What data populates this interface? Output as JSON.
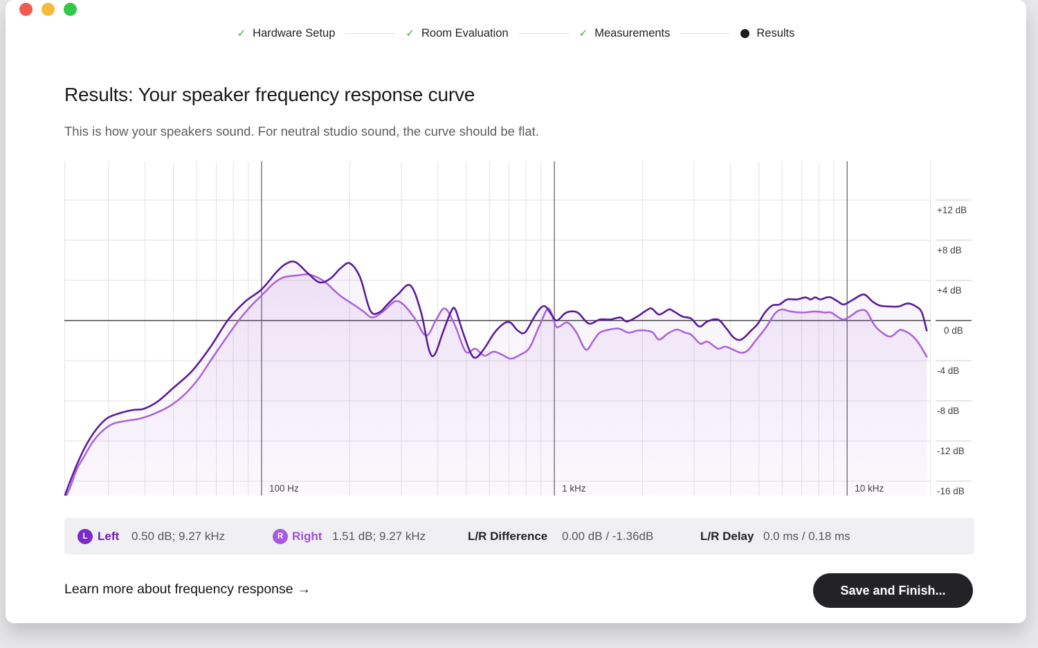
{
  "window": {
    "background": "#e9e8ea",
    "surface": "#ffffff",
    "controls": [
      {
        "name": "close",
        "color": "#f35a51"
      },
      {
        "name": "minimize",
        "color": "#f5bc3c"
      },
      {
        "name": "zoom",
        "color": "#33c748"
      }
    ]
  },
  "stepper": {
    "check_color": "#38a938",
    "current_dot_color": "#1c1c1e",
    "steps": [
      {
        "label": "Hardware Setup",
        "status": "completed"
      },
      {
        "label": "Room Evaluation",
        "status": "completed"
      },
      {
        "label": "Measurements",
        "status": "completed"
      },
      {
        "label": "Results",
        "status": "current"
      }
    ]
  },
  "page": {
    "title": "Results: Your speaker frequency response curve",
    "subtitle": "This is how your speakers sound. For neutral studio sound, the curve should be flat."
  },
  "chart_data": {
    "type": "line",
    "title": "Speaker frequency response",
    "x_scale": "log",
    "x_unit": "Hz",
    "y_unit": "dB",
    "x_range_hz": [
      21.2,
      19300
    ],
    "y_range_db": [
      16,
      -17.45
    ],
    "grid": true,
    "legend_position": "none",
    "x_major_ticks": [
      {
        "hz": 100,
        "label": "100 Hz"
      },
      {
        "hz": 1000,
        "label": "1 kHz"
      },
      {
        "hz": 10000,
        "label": "10 kHz"
      }
    ],
    "x_minor_ticks_hz": [
      30,
      40,
      50,
      60,
      70,
      80,
      90,
      200,
      300,
      400,
      500,
      600,
      700,
      800,
      900,
      2000,
      3000,
      4000,
      5000,
      6000,
      7000,
      8000,
      9000
    ],
    "y_ticks": [
      {
        "db": 12,
        "label": "+12 dB"
      },
      {
        "db": 8,
        "label": "+8 dB"
      },
      {
        "db": 4,
        "label": "+4 dB"
      },
      {
        "db": 0,
        "label": "0 dB"
      },
      {
        "db": -4,
        "label": "-4 dB"
      },
      {
        "db": -8,
        "label": "-8 dB"
      },
      {
        "db": -12,
        "label": "-12 dB"
      },
      {
        "db": -16,
        "label": "-16 dB"
      }
    ],
    "series": [
      {
        "name": "Left",
        "color": "#5a1b9b",
        "fill_top": "rgba(90,27,155,0.05)",
        "fill_bottom": "rgba(90,27,155,0.01)",
        "points": [
          [
            21.3,
            -17.4
          ],
          [
            22,
            -16.3
          ],
          [
            23.6,
            -14.1
          ],
          [
            25.4,
            -12.2
          ],
          [
            27.5,
            -10.7
          ],
          [
            29.8,
            -9.7
          ],
          [
            33,
            -9.2
          ],
          [
            36.6,
            -8.9
          ],
          [
            39.5,
            -8.8
          ],
          [
            44,
            -8.1
          ],
          [
            50,
            -6.7
          ],
          [
            58,
            -5.0
          ],
          [
            67,
            -2.6
          ],
          [
            77,
            0.1
          ],
          [
            88,
            1.9
          ],
          [
            100,
            3.1
          ],
          [
            113,
            4.9
          ],
          [
            122,
            5.7
          ],
          [
            131,
            5.8
          ],
          [
            144,
            4.7
          ],
          [
            158,
            3.8
          ],
          [
            172,
            4.2
          ],
          [
            186,
            5.2
          ],
          [
            200,
            5.7
          ],
          [
            217,
            4.3
          ],
          [
            235,
            1.0
          ],
          [
            252,
            0.8
          ],
          [
            269,
            1.6
          ],
          [
            292,
            2.6
          ],
          [
            322,
            3.5
          ],
          [
            350,
            0.9
          ],
          [
            373,
            -2.9
          ],
          [
            390,
            -3.4
          ],
          [
            416,
            -1.2
          ],
          [
            444,
            0.9
          ],
          [
            459,
            1.1
          ],
          [
            485,
            -1.0
          ],
          [
            517,
            -3.2
          ],
          [
            540,
            -3.7
          ],
          [
            576,
            -2.8
          ],
          [
            625,
            -1.2
          ],
          [
            672,
            -0.3
          ],
          [
            708,
            -0.2
          ],
          [
            750,
            -1.0
          ],
          [
            793,
            -1.2
          ],
          [
            848,
            0.2
          ],
          [
            894,
            1.2
          ],
          [
            932,
            1.4
          ],
          [
            977,
            0.6
          ],
          [
            1020,
            0.0
          ],
          [
            1100,
            0.8
          ],
          [
            1200,
            0.8
          ],
          [
            1310,
            -0.3
          ],
          [
            1430,
            0.1
          ],
          [
            1550,
            0.1
          ],
          [
            1680,
            0.3
          ],
          [
            1770,
            -0.1
          ],
          [
            1920,
            0.4
          ],
          [
            2060,
            1.0
          ],
          [
            2150,
            1.2
          ],
          [
            2280,
            0.6
          ],
          [
            2460,
            1.1
          ],
          [
            2560,
            0.9
          ],
          [
            2740,
            0.4
          ],
          [
            2930,
            0.2
          ],
          [
            3130,
            -0.6
          ],
          [
            3330,
            -0.1
          ],
          [
            3620,
            0.1
          ],
          [
            3870,
            -0.8
          ],
          [
            4100,
            -1.7
          ],
          [
            4350,
            -1.9
          ],
          [
            4700,
            -1.0
          ],
          [
            4960,
            -0.3
          ],
          [
            5240,
            0.8
          ],
          [
            5550,
            1.5
          ],
          [
            5870,
            1.6
          ],
          [
            6250,
            2.1
          ],
          [
            6740,
            2.1
          ],
          [
            7200,
            2.3
          ],
          [
            7500,
            2.1
          ],
          [
            7780,
            2.3
          ],
          [
            8100,
            2.1
          ],
          [
            8500,
            2.3
          ],
          [
            8800,
            2.3
          ],
          [
            9300,
            1.9
          ],
          [
            9750,
            1.6
          ],
          [
            10500,
            2.1
          ],
          [
            11400,
            2.6
          ],
          [
            12200,
            1.9
          ],
          [
            12900,
            1.5
          ],
          [
            13900,
            1.4
          ],
          [
            15000,
            1.4
          ],
          [
            16100,
            1.7
          ],
          [
            17200,
            1.4
          ],
          [
            18000,
            0.8
          ],
          [
            18700,
            -1.0
          ]
        ]
      },
      {
        "name": "Right",
        "color": "#ac65d8",
        "fill_top": "rgba(172,101,216,0.13)",
        "fill_bottom": "rgba(172,101,216,0.02)",
        "points": [
          [
            21.4,
            -17.6
          ],
          [
            22.2,
            -16.6
          ],
          [
            23.4,
            -14.8
          ],
          [
            24.7,
            -13.6
          ],
          [
            26.5,
            -12.1
          ],
          [
            28.6,
            -11.0
          ],
          [
            31,
            -10.3
          ],
          [
            34.3,
            -10.0
          ],
          [
            38,
            -9.8
          ],
          [
            42,
            -9.4
          ],
          [
            48,
            -8.6
          ],
          [
            54,
            -7.5
          ],
          [
            60.5,
            -5.9
          ],
          [
            67.3,
            -3.9
          ],
          [
            75,
            -1.9
          ],
          [
            84,
            0.1
          ],
          [
            93,
            1.6
          ],
          [
            100,
            2.5
          ],
          [
            110,
            3.7
          ],
          [
            119,
            4.3
          ],
          [
            133,
            4.5
          ],
          [
            144,
            4.6
          ],
          [
            155,
            4.3
          ],
          [
            167,
            3.7
          ],
          [
            177,
            3.0
          ],
          [
            189,
            2.3
          ],
          [
            206,
            1.6
          ],
          [
            223,
            0.9
          ],
          [
            239,
            0.3
          ],
          [
            260,
            0.9
          ],
          [
            285,
            1.9
          ],
          [
            305,
            1.6
          ],
          [
            332,
            0.3
          ],
          [
            365,
            -1.5
          ],
          [
            395,
            0.1
          ],
          [
            423,
            1.2
          ],
          [
            458,
            -0.5
          ],
          [
            498,
            -3.1
          ],
          [
            537,
            -2.8
          ],
          [
            576,
            -3.5
          ],
          [
            620,
            -3.1
          ],
          [
            662,
            -3.4
          ],
          [
            710,
            -3.8
          ],
          [
            765,
            -3.4
          ],
          [
            823,
            -2.7
          ],
          [
            890,
            -0.5
          ],
          [
            955,
            1.2
          ],
          [
            1010,
            -0.5
          ],
          [
            1040,
            -0.6
          ],
          [
            1110,
            -0.2
          ],
          [
            1190,
            -1.2
          ],
          [
            1280,
            -2.9
          ],
          [
            1360,
            -2.0
          ],
          [
            1430,
            -1.2
          ],
          [
            1545,
            -0.9
          ],
          [
            1660,
            -0.8
          ],
          [
            1790,
            -1.2
          ],
          [
            1920,
            -1.0
          ],
          [
            2060,
            -1.0
          ],
          [
            2170,
            -1.2
          ],
          [
            2280,
            -1.9
          ],
          [
            2440,
            -1.3
          ],
          [
            2620,
            -0.9
          ],
          [
            2790,
            -1.2
          ],
          [
            2930,
            -1.4
          ],
          [
            3150,
            -2.3
          ],
          [
            3330,
            -2.1
          ],
          [
            3620,
            -2.8
          ],
          [
            3830,
            -2.6
          ],
          [
            4080,
            -2.9
          ],
          [
            4330,
            -3.2
          ],
          [
            4570,
            -3.0
          ],
          [
            4900,
            -1.9
          ],
          [
            5280,
            -0.7
          ],
          [
            5670,
            0.7
          ],
          [
            5990,
            1.1
          ],
          [
            6420,
            0.9
          ],
          [
            7060,
            0.8
          ],
          [
            7780,
            0.9
          ],
          [
            8390,
            0.8
          ],
          [
            8800,
            0.8
          ],
          [
            9300,
            0.35
          ],
          [
            9750,
            0.1
          ],
          [
            10400,
            0.55
          ],
          [
            10900,
            0.95
          ],
          [
            11600,
            0.95
          ],
          [
            12300,
            -0.3
          ],
          [
            12900,
            -1.0
          ],
          [
            14000,
            -1.6
          ],
          [
            15000,
            -1.0
          ],
          [
            15400,
            -0.95
          ],
          [
            16500,
            -1.4
          ],
          [
            17500,
            -2.2
          ],
          [
            18700,
            -3.6
          ]
        ]
      }
    ]
  },
  "stats_bar": {
    "left": {
      "badge": "L",
      "label": "Left",
      "value": "0.50 dB; 9.27 kHz",
      "badge_color": "#7b2ac9",
      "label_color": "#6d1cb4"
    },
    "right": {
      "badge": "R",
      "label": "Right",
      "value": "1.51 dB; 9.27 kHz",
      "badge_color": "#a958e3",
      "label_color": "#a04ddb"
    },
    "difference": {
      "label": "L/R Difference",
      "value": "0.00 dB / -1.36dB"
    },
    "delay": {
      "label": "L/R Delay",
      "value": "0.0 ms / 0.18 ms"
    }
  },
  "footer": {
    "link_label": "Learn more about frequency response",
    "link_arrow": "→",
    "save_button_label": "Save and Finish...",
    "save_button_bg": "#232326"
  }
}
